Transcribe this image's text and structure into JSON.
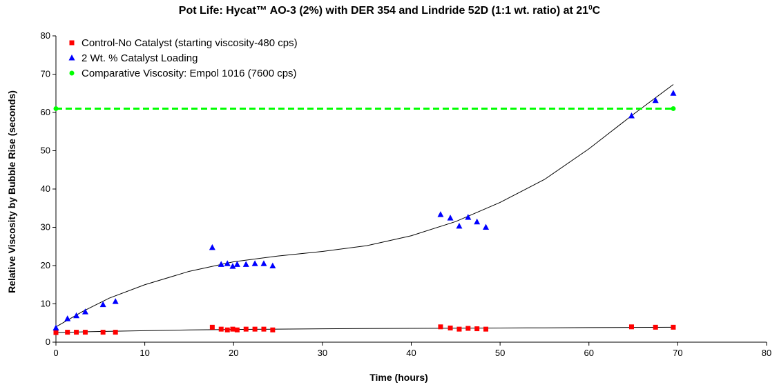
{
  "chart_data": {
    "type": "scatter",
    "title": "Pot Life:  Hycat™ AO-3 (2%) with DER 354 and Lindride 52D (1:1 wt. ratio) at 21",
    "title_superscript": "0",
    "title_suffix": "C",
    "xlabel": "Time (hours)",
    "ylabel": "Relative Viscosity by Bubble Rise (seconds)",
    "xlim": [
      0,
      80
    ],
    "ylim": [
      0,
      80
    ],
    "xticks": [
      0,
      10,
      20,
      30,
      40,
      50,
      60,
      70,
      80
    ],
    "yticks": [
      0,
      10,
      20,
      30,
      40,
      50,
      60,
      70,
      80
    ],
    "grid": false,
    "legend_position": "top-left",
    "series": [
      {
        "name": "Control-No Catalyst (starting viscosity-480 cps)",
        "marker": "square",
        "color": "#ff0000",
        "x": [
          0,
          1.3,
          2.3,
          3.3,
          5.3,
          6.7,
          17.6,
          18.6,
          19.3,
          19.9,
          20.4,
          21.4,
          22.4,
          23.4,
          24.4,
          43.3,
          44.4,
          45.4,
          46.4,
          47.4,
          48.4,
          64.8,
          67.5,
          69.5
        ],
        "y": [
          2.5,
          2.6,
          2.6,
          2.6,
          2.6,
          2.6,
          3.9,
          3.4,
          3.2,
          3.4,
          3.2,
          3.4,
          3.4,
          3.4,
          3.2,
          4.0,
          3.7,
          3.4,
          3.6,
          3.5,
          3.4,
          4.0,
          3.9,
          3.9
        ]
      },
      {
        "name": "2 Wt. % Catalyst Loading",
        "marker": "triangle",
        "color": "#0000ff",
        "x": [
          0,
          1.3,
          2.3,
          3.3,
          5.3,
          6.7,
          17.6,
          18.6,
          19.3,
          19.9,
          20.4,
          21.4,
          22.4,
          23.4,
          24.4,
          43.3,
          44.4,
          45.4,
          46.4,
          47.4,
          48.4,
          64.8,
          67.5,
          69.5
        ],
        "y": [
          3.7,
          6.1,
          6.9,
          7.9,
          9.8,
          10.6,
          24.7,
          20.3,
          20.5,
          19.8,
          20.3,
          20.3,
          20.5,
          20.5,
          19.9,
          33.3,
          32.4,
          30.3,
          32.6,
          31.4,
          30.0,
          59.1,
          63.1,
          65.0
        ]
      },
      {
        "name": "Comparative Viscosity: Empol 1016 (7600 cps)",
        "marker": "circle",
        "color": "#00ff00",
        "line_style": "dashed",
        "x": [
          0,
          69.5
        ],
        "y": [
          61,
          61
        ]
      }
    ],
    "trendlines": [
      {
        "series": "Control-No Catalyst (starting viscosity-480 cps)",
        "x": [
          0,
          5,
          10,
          15,
          20,
          25,
          30,
          35,
          40,
          45,
          50,
          55,
          60,
          65,
          69.5
        ],
        "y": [
          2.5,
          2.8,
          3.0,
          3.2,
          3.3,
          3.4,
          3.5,
          3.55,
          3.6,
          3.65,
          3.7,
          3.75,
          3.8,
          3.85,
          3.9
        ]
      },
      {
        "series": "2 Wt. % Catalyst Loading",
        "x": [
          0,
          3,
          6,
          10,
          15,
          20,
          25,
          30,
          35,
          40,
          45,
          50,
          55,
          60,
          65,
          69.5
        ],
        "y": [
          4.0,
          8.0,
          11.5,
          15.0,
          18.5,
          21.0,
          22.5,
          23.7,
          25.2,
          27.8,
          31.5,
          36.5,
          42.5,
          50.5,
          59.5,
          67.3
        ]
      }
    ]
  }
}
